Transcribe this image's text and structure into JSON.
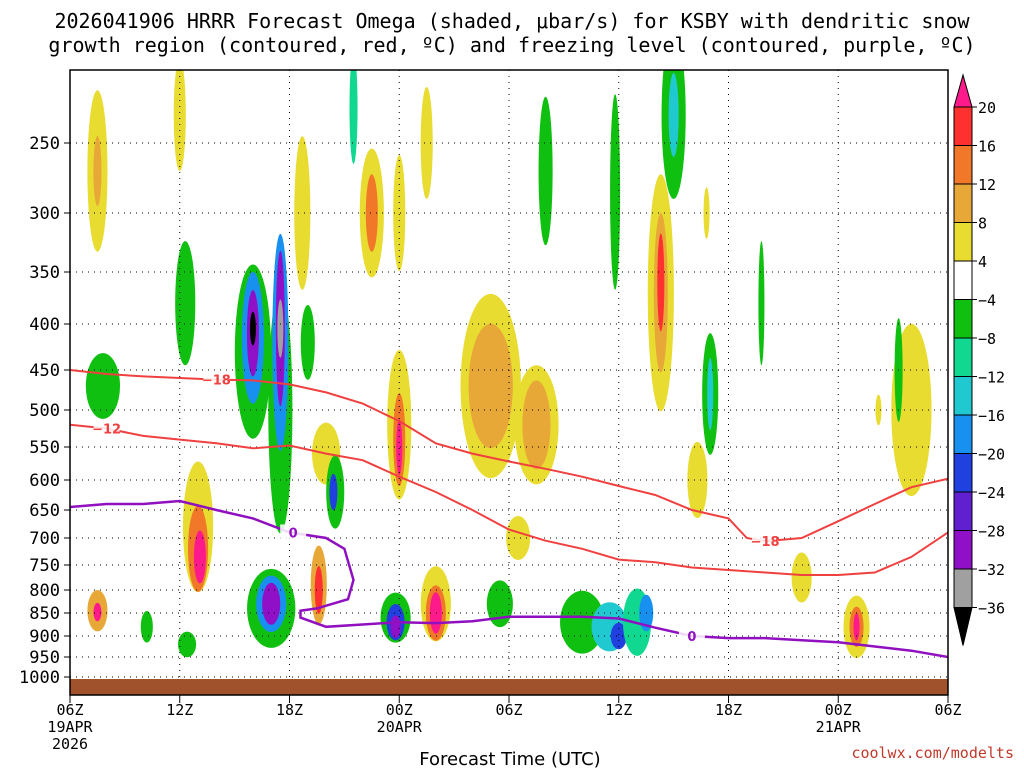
{
  "title_line1": "2026041906 HRRR Forecast Omega (shaded, μbar/s) for KSBY with dendritic snow",
  "title_line2": "growth region (contoured, red, ºC) and freezing level (contoured, purple, ºC)",
  "credit": "coolwx.com/modelts",
  "chart_data": {
    "type": "heatmap",
    "title": "2026041906 HRRR Forecast Omega (shaded, μbar/s) for KSBY with dendritic snow growth region (contoured, red, ºC) and freezing level (contoured, purple, ºC)",
    "xlabel": "Forecast Time (UTC)",
    "ylabel": "",
    "xlim": [
      0,
      48
    ],
    "ylim": [
      1020,
      200
    ],
    "grid": true,
    "x_ticks": [
      {
        "h": 0,
        "label": "06Z",
        "sub": [
          "19APR",
          "2026"
        ]
      },
      {
        "h": 6,
        "label": "12Z",
        "sub": []
      },
      {
        "h": 12,
        "label": "18Z",
        "sub": []
      },
      {
        "h": 18,
        "label": "00Z",
        "sub": [
          "20APR"
        ]
      },
      {
        "h": 24,
        "label": "06Z",
        "sub": []
      },
      {
        "h": 30,
        "label": "12Z",
        "sub": []
      },
      {
        "h": 36,
        "label": "18Z",
        "sub": []
      },
      {
        "h": 42,
        "label": "00Z",
        "sub": [
          "21APR"
        ]
      },
      {
        "h": 48,
        "label": "06Z",
        "sub": []
      }
    ],
    "y_ticks": [
      250,
      300,
      350,
      400,
      450,
      500,
      550,
      600,
      650,
      700,
      750,
      800,
      850,
      900,
      950,
      1000
    ],
    "colorbar": {
      "labels": [
        "20",
        "16",
        "12",
        "8",
        "4",
        "−4",
        "−8",
        "−12",
        "−16",
        "−20",
        "−24",
        "−28",
        "−32",
        "−36"
      ],
      "colors": [
        "#ff2a2a",
        "#ff7a2a",
        "#f0a030",
        "#e8c840",
        "#ede030",
        "#ffffff",
        "#10c010",
        "#10d890",
        "#20c0d0",
        "#1890e8",
        "#2040e0",
        "#6020d0",
        "#a010c8",
        "#a0a0a0"
      ]
    },
    "cells": [
      {
        "t": 1.5,
        "p": 270,
        "dt": 1.0,
        "dp": 120,
        "v": 5
      },
      {
        "t": 1.5,
        "p": 270,
        "dt": 0.4,
        "dp": 50,
        "v": 9
      },
      {
        "t": 1.8,
        "p": 470,
        "dt": 1.7,
        "dp": 80,
        "v": -6
      },
      {
        "t": 1.5,
        "p": 845,
        "dt": 1.0,
        "dp": 90,
        "v": 10
      },
      {
        "t": 1.5,
        "p": 848,
        "dt": 0.4,
        "dp": 40,
        "v": 20
      },
      {
        "t": 4.2,
        "p": 880,
        "dt": 0.6,
        "dp": 70,
        "v": -5
      },
      {
        "t": 6.3,
        "p": 380,
        "dt": 1.0,
        "dp": 120,
        "v": -6
      },
      {
        "t": 6.0,
        "p": 230,
        "dt": 0.6,
        "dp": 80,
        "v": 6
      },
      {
        "t": 7.0,
        "p": 680,
        "dt": 1.5,
        "dp": 230,
        "v": 6
      },
      {
        "t": 7.0,
        "p": 720,
        "dt": 1.0,
        "dp": 160,
        "v": 12
      },
      {
        "t": 7.1,
        "p": 735,
        "dt": 0.6,
        "dp": 100,
        "v": 20
      },
      {
        "t": 6.4,
        "p": 920,
        "dt": 0.9,
        "dp": 60,
        "v": -6
      },
      {
        "t": 10.0,
        "p": 430,
        "dt": 1.8,
        "dp": 190,
        "v": -6
      },
      {
        "t": 10.0,
        "p": 415,
        "dt": 1.1,
        "dp": 140,
        "v": -16
      },
      {
        "t": 10.0,
        "p": 410,
        "dt": 0.6,
        "dp": 90,
        "v": -28
      },
      {
        "t": 10.0,
        "p": 405,
        "dt": 0.25,
        "dp": 35,
        "v": -40
      },
      {
        "t": 11.5,
        "p": 500,
        "dt": 1.2,
        "dp": 310,
        "v": -6
      },
      {
        "t": 11.5,
        "p": 420,
        "dt": 0.8,
        "dp": 230,
        "v": -16
      },
      {
        "t": 11.5,
        "p": 405,
        "dt": 0.45,
        "dp": 160,
        "v": -28
      },
      {
        "t": 11.5,
        "p": 405,
        "dt": 0.2,
        "dp": 60,
        "v": -32
      },
      {
        "t": 11.0,
        "p": 840,
        "dt": 2.4,
        "dp": 170,
        "v": -6
      },
      {
        "t": 11.0,
        "p": 830,
        "dt": 1.5,
        "dp": 120,
        "v": -16
      },
      {
        "t": 11.0,
        "p": 830,
        "dt": 0.9,
        "dp": 90,
        "v": -28
      },
      {
        "t": 12.7,
        "p": 300,
        "dt": 0.8,
        "dp": 120,
        "v": 5
      },
      {
        "t": 13.0,
        "p": 420,
        "dt": 0.7,
        "dp": 80,
        "v": -6
      },
      {
        "t": 14.0,
        "p": 560,
        "dt": 1.4,
        "dp": 90,
        "v": 6
      },
      {
        "t": 13.6,
        "p": 790,
        "dt": 0.8,
        "dp": 160,
        "v": 8
      },
      {
        "t": 13.6,
        "p": 800,
        "dt": 0.4,
        "dp": 100,
        "v": 18
      },
      {
        "t": 14.5,
        "p": 620,
        "dt": 0.9,
        "dp": 120,
        "v": -6
      },
      {
        "t": 14.4,
        "p": 620,
        "dt": 0.4,
        "dp": 60,
        "v": -20
      },
      {
        "t": 15.5,
        "p": 225,
        "dt": 0.4,
        "dp": 80,
        "v": -10
      },
      {
        "t": 16.5,
        "p": 300,
        "dt": 1.2,
        "dp": 100,
        "v": 6
      },
      {
        "t": 16.5,
        "p": 300,
        "dt": 0.6,
        "dp": 60,
        "v": 12
      },
      {
        "t": 18.0,
        "p": 520,
        "dt": 1.2,
        "dp": 200,
        "v": 6
      },
      {
        "t": 18.0,
        "p": 540,
        "dt": 0.6,
        "dp": 130,
        "v": 14
      },
      {
        "t": 18.0,
        "p": 550,
        "dt": 0.3,
        "dp": 80,
        "v": 20
      },
      {
        "t": 18.0,
        "p": 300,
        "dt": 0.6,
        "dp": 90,
        "v": 6
      },
      {
        "t": 17.8,
        "p": 860,
        "dt": 1.5,
        "dp": 110,
        "v": -6
      },
      {
        "t": 17.8,
        "p": 870,
        "dt": 0.9,
        "dp": 80,
        "v": -20
      },
      {
        "t": 17.8,
        "p": 880,
        "dt": 0.5,
        "dp": 50,
        "v": -28
      },
      {
        "t": 20.0,
        "p": 830,
        "dt": 1.5,
        "dp": 160,
        "v": 6
      },
      {
        "t": 20.0,
        "p": 850,
        "dt": 1.0,
        "dp": 120,
        "v": 14
      },
      {
        "t": 20.0,
        "p": 850,
        "dt": 0.6,
        "dp": 90,
        "v": 20
      },
      {
        "t": 19.5,
        "p": 250,
        "dt": 0.6,
        "dp": 80,
        "v": 6
      },
      {
        "t": 23.0,
        "p": 470,
        "dt": 3.0,
        "dp": 220,
        "v": 6
      },
      {
        "t": 23.0,
        "p": 470,
        "dt": 2.2,
        "dp": 150,
        "v": 10
      },
      {
        "t": 25.5,
        "p": 520,
        "dt": 2.2,
        "dp": 160,
        "v": 6
      },
      {
        "t": 25.5,
        "p": 520,
        "dt": 1.4,
        "dp": 120,
        "v": 10
      },
      {
        "t": 24.5,
        "p": 700,
        "dt": 1.2,
        "dp": 80,
        "v": 5
      },
      {
        "t": 23.5,
        "p": 830,
        "dt": 1.3,
        "dp": 100,
        "v": -6
      },
      {
        "t": 26.0,
        "p": 270,
        "dt": 0.7,
        "dp": 110,
        "v": -6
      },
      {
        "t": 28.0,
        "p": 870,
        "dt": 2.2,
        "dp": 140,
        "v": -6
      },
      {
        "t": 29.5,
        "p": 880,
        "dt": 1.8,
        "dp": 110,
        "v": -12
      },
      {
        "t": 30.0,
        "p": 900,
        "dt": 0.8,
        "dp": 60,
        "v": -20
      },
      {
        "t": 31.0,
        "p": 870,
        "dt": 1.4,
        "dp": 150,
        "v": -10
      },
      {
        "t": 31.5,
        "p": 850,
        "dt": 0.7,
        "dp": 80,
        "v": -16
      },
      {
        "t": 29.8,
        "p": 285,
        "dt": 0.5,
        "dp": 150,
        "v": -6
      },
      {
        "t": 32.3,
        "p": 370,
        "dt": 1.3,
        "dp": 220,
        "v": 6
      },
      {
        "t": 32.3,
        "p": 370,
        "dt": 0.7,
        "dp": 150,
        "v": 10
      },
      {
        "t": 32.3,
        "p": 360,
        "dt": 0.35,
        "dp": 90,
        "v": 16
      },
      {
        "t": 33.0,
        "p": 230,
        "dt": 1.2,
        "dp": 120,
        "v": -6
      },
      {
        "t": 33.0,
        "p": 230,
        "dt": 0.5,
        "dp": 60,
        "v": -12
      },
      {
        "t": 35.0,
        "p": 480,
        "dt": 0.8,
        "dp": 150,
        "v": -6
      },
      {
        "t": 35.0,
        "p": 480,
        "dt": 0.3,
        "dp": 90,
        "v": -12
      },
      {
        "t": 34.3,
        "p": 600,
        "dt": 1.0,
        "dp": 120,
        "v": 6
      },
      {
        "t": 34.8,
        "p": 300,
        "dt": 0.3,
        "dp": 40,
        "v": 6
      },
      {
        "t": 37.8,
        "p": 380,
        "dt": 0.3,
        "dp": 120,
        "v": -6
      },
      {
        "t": 40.0,
        "p": 775,
        "dt": 1.0,
        "dp": 100,
        "v": 6
      },
      {
        "t": 43.0,
        "p": 880,
        "dt": 1.3,
        "dp": 140,
        "v": 6
      },
      {
        "t": 43.0,
        "p": 880,
        "dt": 0.7,
        "dp": 90,
        "v": 12
      },
      {
        "t": 43.0,
        "p": 880,
        "dt": 0.3,
        "dp": 60,
        "v": 20
      },
      {
        "t": 46.0,
        "p": 500,
        "dt": 2.0,
        "dp": 220,
        "v": 6
      },
      {
        "t": 45.3,
        "p": 450,
        "dt": 0.4,
        "dp": 120,
        "v": -6
      },
      {
        "t": 44.2,
        "p": 500,
        "dt": 0.2,
        "dp": 40,
        "v": 6
      }
    ],
    "contours": [
      {
        "name": "-18",
        "color": "#f04040",
        "width": 2,
        "points": [
          [
            0,
            450
          ],
          [
            2,
            455
          ],
          [
            4,
            458
          ],
          [
            6,
            460
          ],
          [
            8,
            462
          ],
          [
            10,
            463
          ],
          [
            12,
            468
          ],
          [
            14,
            478
          ],
          [
            16,
            492
          ],
          [
            18,
            515
          ],
          [
            20,
            545
          ],
          [
            22,
            560
          ],
          [
            24,
            572
          ],
          [
            26,
            583
          ],
          [
            28,
            595
          ],
          [
            30,
            610
          ],
          [
            32,
            625
          ],
          [
            34,
            650
          ],
          [
            36,
            665
          ],
          [
            37,
            700
          ],
          [
            38,
            706
          ],
          [
            40,
            700
          ],
          [
            42,
            670
          ],
          [
            44,
            640
          ],
          [
            46,
            612
          ],
          [
            48,
            598
          ]
        ],
        "label": "−18",
        "label_points": [
          [
            8,
            462
          ],
          [
            38,
            706
          ]
        ]
      },
      {
        "name": "-12",
        "color": "#f04040",
        "width": 2,
        "points": [
          [
            0,
            520
          ],
          [
            2,
            525
          ],
          [
            4,
            535
          ],
          [
            6,
            540
          ],
          [
            8,
            545
          ],
          [
            10,
            552
          ],
          [
            12,
            548
          ],
          [
            14,
            560
          ],
          [
            16,
            570
          ],
          [
            18,
            595
          ],
          [
            20,
            620
          ],
          [
            22,
            650
          ],
          [
            24,
            685
          ],
          [
            26,
            705
          ],
          [
            28,
            720
          ],
          [
            30,
            740
          ],
          [
            32,
            745
          ],
          [
            34,
            755
          ],
          [
            36,
            760
          ],
          [
            38,
            765
          ],
          [
            40,
            770
          ],
          [
            42,
            770
          ],
          [
            44,
            765
          ],
          [
            46,
            735
          ],
          [
            48,
            690
          ]
        ],
        "label": "−12",
        "label_points": [
          [
            2,
            525
          ]
        ]
      },
      {
        "name": "freezing",
        "color": "#9010c0",
        "width": 2.5,
        "points": [
          [
            0,
            645
          ],
          [
            2,
            640
          ],
          [
            4,
            640
          ],
          [
            6,
            635
          ],
          [
            8,
            650
          ],
          [
            10,
            665
          ],
          [
            12,
            690
          ],
          [
            14,
            700
          ],
          [
            15,
            720
          ],
          [
            15.5,
            780
          ],
          [
            15.2,
            820
          ],
          [
            13.5,
            840
          ],
          [
            12.6,
            845
          ],
          [
            12.6,
            860
          ],
          [
            14,
            880
          ],
          [
            16,
            875
          ],
          [
            18,
            870
          ],
          [
            20,
            872
          ],
          [
            22,
            868
          ],
          [
            24,
            858
          ],
          [
            26,
            858
          ],
          [
            28,
            858
          ],
          [
            30,
            862
          ],
          [
            32,
            882
          ],
          [
            34,
            900
          ],
          [
            36,
            905
          ],
          [
            38,
            905
          ],
          [
            40,
            910
          ],
          [
            42,
            915
          ],
          [
            44,
            925
          ],
          [
            46,
            935
          ],
          [
            48,
            950
          ]
        ],
        "label": "0",
        "label_points": [
          [
            12.2,
            690
          ],
          [
            34,
            900
          ]
        ]
      }
    ]
  }
}
